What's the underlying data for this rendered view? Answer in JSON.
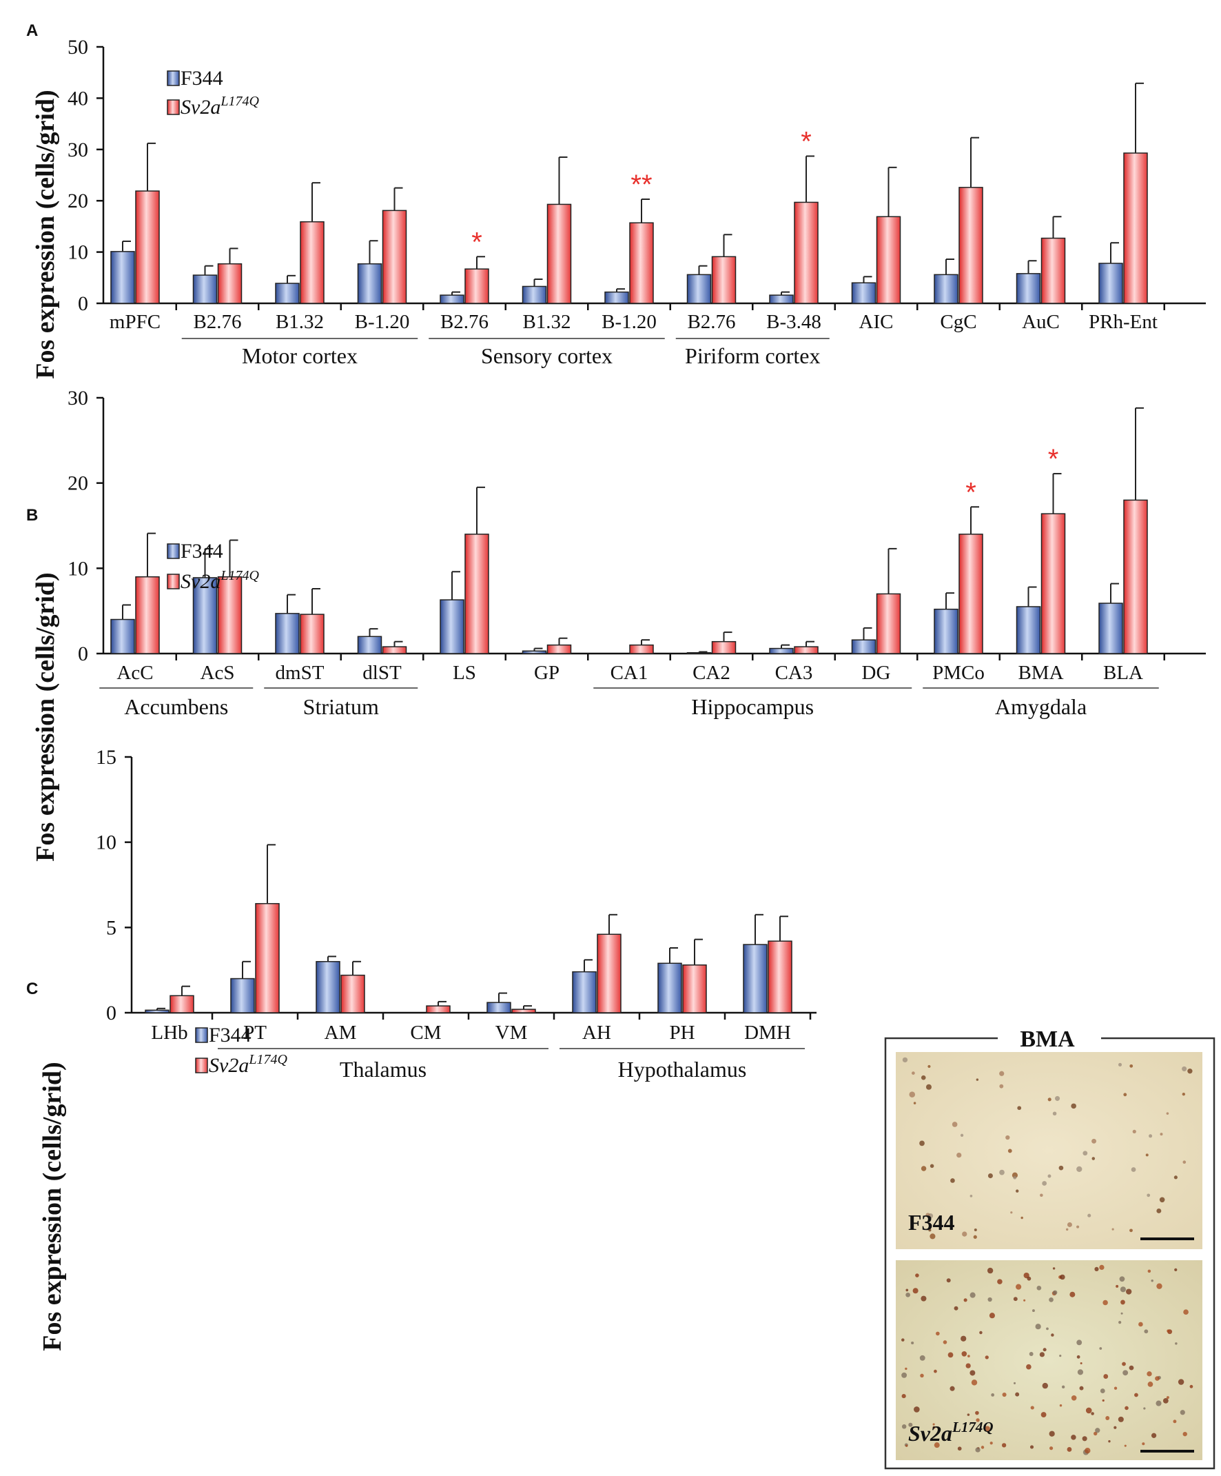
{
  "legend": {
    "series": [
      {
        "name": "F344",
        "color": "#5b7fc7"
      },
      {
        "name": "Sv2a",
        "superscript": "L174Q",
        "color": "#ef5b5b"
      }
    ]
  },
  "micrograph": {
    "title": "BMA",
    "panels": [
      {
        "label": "F344",
        "superscript": ""
      },
      {
        "label": "Sv2a",
        "superscript": "L174Q"
      }
    ]
  },
  "chart_data": [
    {
      "panel": "A",
      "type": "bar",
      "ylabel": "Fos expression (cells/grid)",
      "ylim": [
        0,
        50
      ],
      "yticks": [
        0,
        10,
        20,
        30,
        40,
        50
      ],
      "categories": [
        "mPFC",
        "B2.76",
        "B1.32",
        "B-1.20",
        "B2.76",
        "B1.32",
        "B-1.20",
        "B2.76",
        "B-3.48",
        "AIC",
        "CgC",
        "AuC",
        "PRh-Ent"
      ],
      "series": [
        {
          "name": "F344",
          "values": [
            10.1,
            5.5,
            3.9,
            7.7,
            1.6,
            3.3,
            2.2,
            5.6,
            1.6,
            4.0,
            5.6,
            5.8,
            7.8
          ],
          "errors": [
            2.0,
            1.8,
            1.5,
            4.5,
            0.6,
            1.4,
            0.6,
            1.7,
            0.6,
            1.2,
            3.0,
            2.5,
            4.0
          ]
        },
        {
          "name": "Sv2a L174Q",
          "values": [
            21.9,
            7.7,
            15.9,
            18.1,
            6.7,
            19.3,
            15.7,
            9.1,
            19.7,
            16.9,
            22.6,
            12.7,
            29.3
          ],
          "errors": [
            9.3,
            3.0,
            7.6,
            4.4,
            2.4,
            9.2,
            4.6,
            4.3,
            9.0,
            9.6,
            9.7,
            4.2,
            13.6
          ]
        }
      ],
      "significance": [
        {
          "category_index": 4,
          "marker": "*"
        },
        {
          "category_index": 6,
          "marker": "**"
        },
        {
          "category_index": 8,
          "marker": "*"
        }
      ],
      "groups": [
        {
          "label": "Motor cortex",
          "from": 1,
          "to": 3
        },
        {
          "label": "Sensory cortex",
          "from": 4,
          "to": 6
        },
        {
          "label": "Piriform cortex",
          "from": 7,
          "to": 8
        }
      ]
    },
    {
      "panel": "B",
      "type": "bar",
      "ylabel": "Fos expression (cells/grid)",
      "ylim": [
        0,
        30
      ],
      "yticks": [
        0,
        10,
        20,
        30
      ],
      "categories": [
        "AcC",
        "AcS",
        "dmST",
        "dlST",
        "LS",
        "GP",
        "CA1",
        "CA2",
        "CA3",
        "DG",
        "PMCo",
        "BMA",
        "BLA"
      ],
      "series": [
        {
          "name": "F344",
          "values": [
            4.0,
            8.9,
            4.7,
            2.0,
            6.3,
            0.3,
            0.0,
            0.1,
            0.6,
            1.6,
            5.2,
            5.5,
            5.9
          ],
          "errors": [
            1.7,
            3.4,
            2.2,
            0.9,
            3.3,
            0.3,
            0.0,
            0.1,
            0.4,
            1.4,
            1.9,
            2.3,
            2.3
          ]
        },
        {
          "name": "Sv2a L174Q",
          "values": [
            9.0,
            9.0,
            4.6,
            0.8,
            14.0,
            1.0,
            1.0,
            1.4,
            0.8,
            7.0,
            14.0,
            16.4,
            18.0
          ],
          "errors": [
            5.1,
            4.3,
            3.0,
            0.6,
            5.5,
            0.8,
            0.6,
            1.1,
            0.6,
            5.3,
            3.2,
            4.7,
            10.8
          ]
        }
      ],
      "significance": [
        {
          "category_index": 10,
          "marker": "*"
        },
        {
          "category_index": 11,
          "marker": "*"
        }
      ],
      "groups": [
        {
          "label": "Accumbens",
          "from": 0,
          "to": 1
        },
        {
          "label": "Striatum",
          "from": 2,
          "to": 3
        },
        {
          "label": "Hippocampus",
          "from": 6,
          "to": 9
        },
        {
          "label": "Amygdala",
          "from": 10,
          "to": 12
        }
      ]
    },
    {
      "panel": "C",
      "type": "bar",
      "ylabel": "Fos expression (cells/grid)",
      "ylim": [
        0,
        15
      ],
      "yticks": [
        0,
        5,
        10,
        15
      ],
      "categories": [
        "LHb",
        "PT",
        "AM",
        "CM",
        "VM",
        "AH",
        "PH",
        "DMH"
      ],
      "series": [
        {
          "name": "F344",
          "values": [
            0.15,
            2.0,
            3.0,
            0.0,
            0.6,
            2.4,
            2.9,
            4.0
          ],
          "errors": [
            0.1,
            1.0,
            0.3,
            0.0,
            0.55,
            0.7,
            0.9,
            1.75
          ]
        },
        {
          "name": "Sv2a L174Q",
          "values": [
            1.0,
            6.4,
            2.2,
            0.4,
            0.2,
            4.6,
            2.8,
            4.2
          ],
          "errors": [
            0.55,
            3.45,
            0.8,
            0.25,
            0.2,
            1.15,
            1.5,
            1.45
          ]
        }
      ],
      "significance": [],
      "groups": [
        {
          "label": "Thalamus",
          "from": 1,
          "to": 4
        },
        {
          "label": "Hypothalamus",
          "from": 5,
          "to": 7
        }
      ]
    }
  ]
}
